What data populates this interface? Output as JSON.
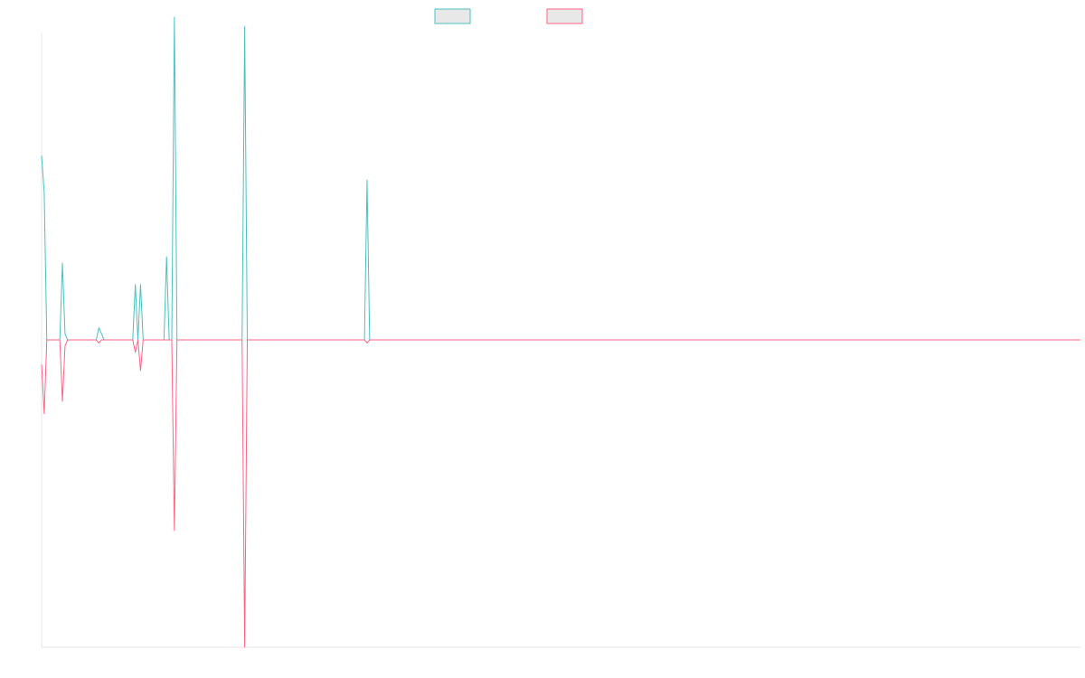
{
  "chart_data": {
    "type": "line",
    "title": "",
    "xlabel": "",
    "ylabel": "",
    "grid": false,
    "legend_position": "top-center",
    "x_count": 400,
    "ylim": [
      -100,
      100
    ],
    "colors": {
      "series_a": "#4bc0c0",
      "series_b": "#ff6384",
      "legend_fill": "#e8e8e8",
      "axis": "#e6e6e6"
    },
    "series": [
      {
        "name": "",
        "points": [
          [
            0,
            60
          ],
          [
            1,
            48
          ],
          [
            2,
            0
          ],
          [
            3,
            0
          ],
          [
            4,
            0
          ],
          [
            5,
            0
          ],
          [
            6,
            0
          ],
          [
            7,
            0
          ],
          [
            8,
            25
          ],
          [
            9,
            2
          ],
          [
            10,
            0
          ],
          [
            11,
            0
          ],
          [
            12,
            0
          ],
          [
            13,
            0
          ],
          [
            14,
            0
          ],
          [
            15,
            0
          ],
          [
            16,
            0
          ],
          [
            17,
            0
          ],
          [
            18,
            0
          ],
          [
            19,
            0
          ],
          [
            20,
            0
          ],
          [
            21,
            0
          ],
          [
            22,
            4
          ],
          [
            23,
            2
          ],
          [
            24,
            0
          ],
          [
            25,
            0
          ],
          [
            26,
            0
          ],
          [
            27,
            0
          ],
          [
            28,
            0
          ],
          [
            29,
            0
          ],
          [
            30,
            0
          ],
          [
            31,
            0
          ],
          [
            32,
            0
          ],
          [
            33,
            0
          ],
          [
            34,
            0
          ],
          [
            35,
            0
          ],
          [
            36,
            18
          ],
          [
            37,
            0
          ],
          [
            38,
            18
          ],
          [
            39,
            0
          ],
          [
            40,
            0
          ],
          [
            41,
            0
          ],
          [
            42,
            0
          ],
          [
            43,
            0
          ],
          [
            44,
            0
          ],
          [
            45,
            0
          ],
          [
            46,
            0
          ],
          [
            47,
            0
          ],
          [
            48,
            27
          ],
          [
            49,
            0
          ],
          [
            50,
            0
          ],
          [
            51,
            105
          ],
          [
            52,
            0
          ],
          [
            53,
            0
          ],
          [
            54,
            0
          ],
          [
            77,
            0
          ],
          [
            78,
            102
          ],
          [
            79,
            0
          ],
          [
            80,
            0
          ],
          [
            124,
            0
          ],
          [
            125,
            52
          ],
          [
            126,
            0
          ],
          [
            127,
            0
          ],
          [
            399,
            0
          ]
        ]
      },
      {
        "name": "",
        "points": [
          [
            0,
            -8
          ],
          [
            1,
            -24
          ],
          [
            2,
            0
          ],
          [
            3,
            0
          ],
          [
            4,
            0
          ],
          [
            5,
            0
          ],
          [
            6,
            0
          ],
          [
            7,
            0
          ],
          [
            8,
            -20
          ],
          [
            9,
            -2
          ],
          [
            10,
            0
          ],
          [
            11,
            0
          ],
          [
            12,
            0
          ],
          [
            13,
            0
          ],
          [
            14,
            0
          ],
          [
            15,
            0
          ],
          [
            16,
            0
          ],
          [
            17,
            0
          ],
          [
            18,
            0
          ],
          [
            19,
            0
          ],
          [
            20,
            0
          ],
          [
            21,
            0
          ],
          [
            22,
            -1
          ],
          [
            23,
            0
          ],
          [
            24,
            0
          ],
          [
            25,
            0
          ],
          [
            26,
            0
          ],
          [
            27,
            0
          ],
          [
            28,
            0
          ],
          [
            29,
            0
          ],
          [
            30,
            0
          ],
          [
            31,
            0
          ],
          [
            32,
            0
          ],
          [
            33,
            0
          ],
          [
            34,
            0
          ],
          [
            35,
            0
          ],
          [
            36,
            -4
          ],
          [
            37,
            0
          ],
          [
            38,
            -10
          ],
          [
            39,
            0
          ],
          [
            40,
            0
          ],
          [
            41,
            0
          ],
          [
            42,
            0
          ],
          [
            43,
            0
          ],
          [
            44,
            0
          ],
          [
            45,
            0
          ],
          [
            46,
            0
          ],
          [
            47,
            0
          ],
          [
            48,
            0
          ],
          [
            49,
            0
          ],
          [
            50,
            0
          ],
          [
            51,
            -62
          ],
          [
            52,
            0
          ],
          [
            53,
            0
          ],
          [
            54,
            0
          ],
          [
            77,
            0
          ],
          [
            78,
            -100
          ],
          [
            79,
            0
          ],
          [
            80,
            0
          ],
          [
            124,
            0
          ],
          [
            125,
            -1
          ],
          [
            126,
            0
          ],
          [
            127,
            0
          ],
          [
            399,
            0
          ]
        ]
      }
    ]
  }
}
